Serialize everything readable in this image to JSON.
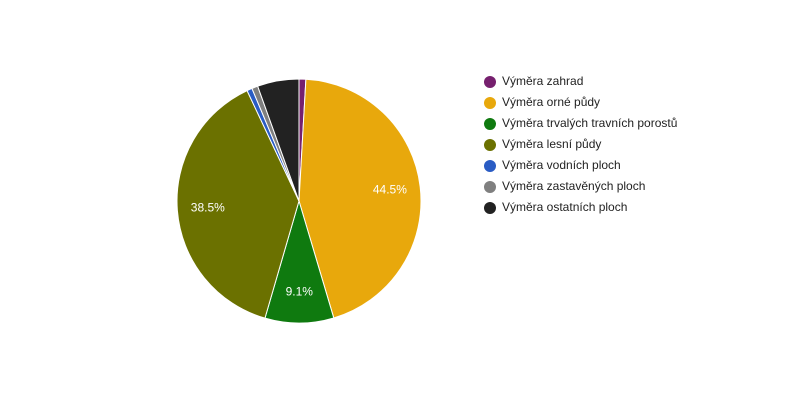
{
  "chart_data": {
    "type": "pie",
    "categories": [
      "Výměra zahrad",
      "Výměra orné půdy",
      "Výměra trvalých travních porostů",
      "Výměra lesní půdy",
      "Výměra vodních ploch",
      "Výměra zastavěných ploch",
      "Výměra ostatních ploch"
    ],
    "values": [
      0.9,
      44.5,
      9.1,
      38.5,
      0.7,
      0.8,
      5.5
    ],
    "value_labels": [
      null,
      "44.5%",
      "9.1%",
      "38.5%",
      null,
      null,
      null
    ],
    "colors": [
      "#76206e",
      "#e8a80c",
      "#0f7a0f",
      "#6b7100",
      "#2a5cc4",
      "#7f7f7f",
      "#222222"
    ],
    "legend": "right"
  }
}
